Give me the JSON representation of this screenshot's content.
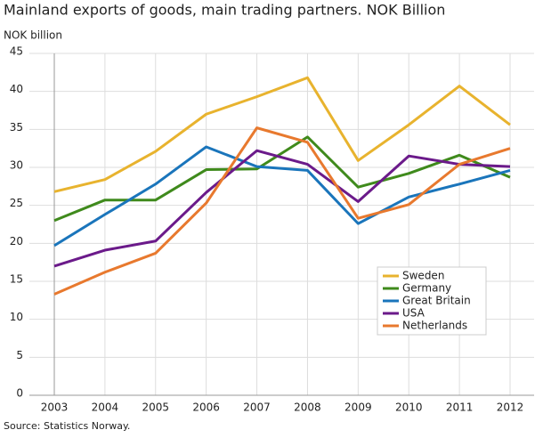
{
  "chart_data": {
    "type": "line",
    "title": "Mainland exports of goods, main trading partners. NOK Billion",
    "y_label": "NOK billion",
    "source": "Source: Statistics Norway.",
    "categories": [
      "2003",
      "2004",
      "2005",
      "2006",
      "2007",
      "2008",
      "2009",
      "2010",
      "2011",
      "2012"
    ],
    "series": [
      {
        "name": "Sweden",
        "color": "#e8b32e",
        "values": [
          26.8,
          28.4,
          32.1,
          37.0,
          39.3,
          41.8,
          30.9,
          35.6,
          40.7,
          35.6
        ]
      },
      {
        "name": "Germany",
        "color": "#3f8a1c",
        "values": [
          23.0,
          25.7,
          25.7,
          29.7,
          29.8,
          34.0,
          27.4,
          29.2,
          31.6,
          28.7
        ]
      },
      {
        "name": "Great Britain",
        "color": "#1a75bb",
        "values": [
          19.7,
          23.8,
          27.8,
          32.7,
          30.1,
          29.6,
          22.6,
          26.1,
          27.8,
          29.6
        ]
      },
      {
        "name": "USA",
        "color": "#6b1a8a",
        "values": [
          17.0,
          19.1,
          20.3,
          26.7,
          32.2,
          30.4,
          25.5,
          31.5,
          30.4,
          30.1
        ]
      },
      {
        "name": "Netherlands",
        "color": "#e8792e",
        "values": [
          13.3,
          16.2,
          18.7,
          25.3,
          35.2,
          33.3,
          23.3,
          25.1,
          30.4,
          32.5
        ]
      }
    ],
    "ylim": [
      0,
      45
    ],
    "yticks": [
      0,
      5,
      10,
      15,
      20,
      25,
      30,
      35,
      40,
      45
    ],
    "grid": true,
    "legend_position": "lower-right"
  }
}
